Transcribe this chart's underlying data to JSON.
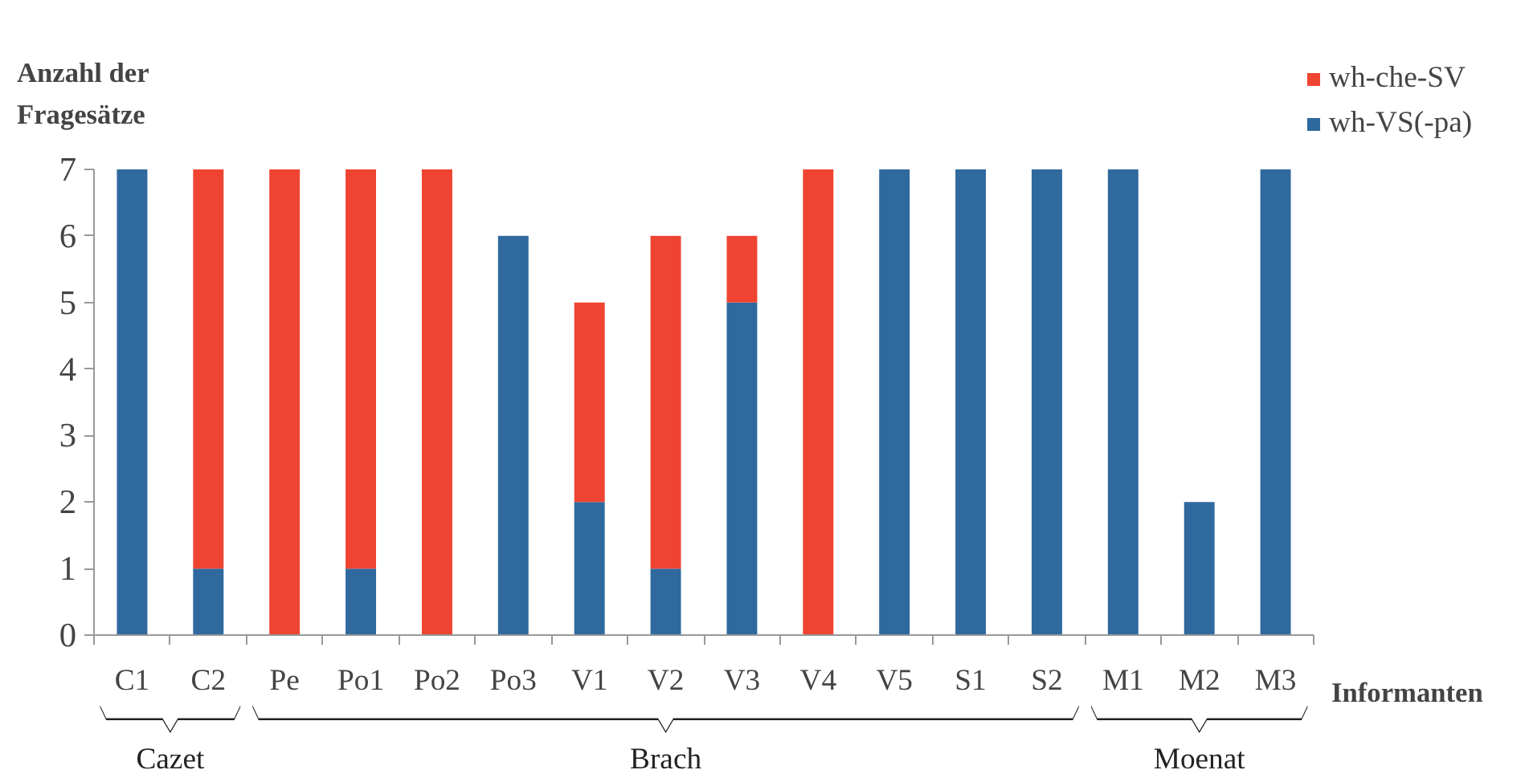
{
  "chart_data": {
    "type": "bar",
    "stacked": true,
    "ylabel": "Anzahl der Fragesätze",
    "xlabel": "Informanten",
    "categories": [
      "C1",
      "C2",
      "Pe",
      "Po1",
      "Po2",
      "Po3",
      "V1",
      "V2",
      "V3",
      "V4",
      "V5",
      "S1",
      "S2",
      "M1",
      "M2",
      "M3"
    ],
    "series": [
      {
        "name": "wh-VS(-pa)",
        "color": "#2f699e",
        "values": [
          7,
          1,
          0,
          1,
          0,
          6,
          2,
          1,
          5,
          0,
          7,
          7,
          7,
          7,
          2,
          7
        ]
      },
      {
        "name": "wh-che-SV",
        "color": "#ef4432",
        "values": [
          0,
          6,
          7,
          6,
          7,
          0,
          3,
          5,
          1,
          7,
          0,
          0,
          0,
          0,
          0,
          0
        ]
      }
    ],
    "ylim": [
      0,
      7
    ],
    "yticks": [
      0,
      1,
      2,
      3,
      4,
      5,
      6,
      7
    ],
    "legend": "top right",
    "annotations": [
      "Cazet",
      "Brach",
      "Moenat"
    ]
  }
}
